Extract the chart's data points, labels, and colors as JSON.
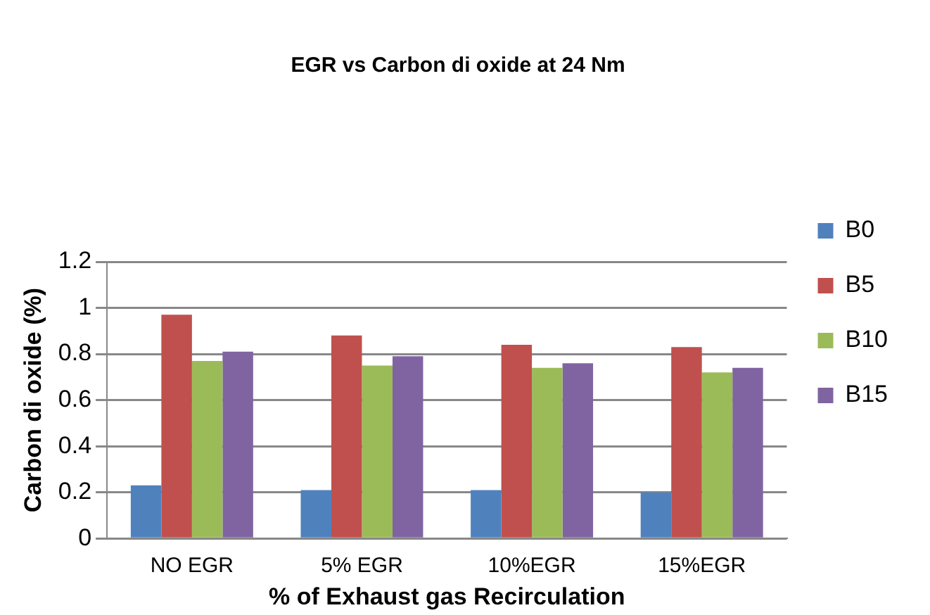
{
  "chart_data": {
    "type": "bar",
    "title": "EGR vs Carbon di oxide at 24 Nm",
    "xlabel": "% of Exhaust gas Recirculation",
    "ylabel": "Carbon di oxide (%)",
    "categories": [
      "NO EGR",
      "5% EGR",
      "10%EGR",
      "15%EGR"
    ],
    "series": [
      {
        "name": "B0",
        "color": "#4f81bd",
        "values": [
          0.23,
          0.21,
          0.21,
          0.2
        ]
      },
      {
        "name": "B5",
        "color": "#c0504d",
        "values": [
          0.97,
          0.88,
          0.84,
          0.83
        ]
      },
      {
        "name": "B10",
        "color": "#9bbb59",
        "values": [
          0.77,
          0.75,
          0.74,
          0.72
        ]
      },
      {
        "name": "B15",
        "color": "#8064a2",
        "values": [
          0.81,
          0.79,
          0.76,
          0.74
        ]
      }
    ],
    "ylim": [
      0,
      1.2
    ],
    "yticks": [
      0,
      0.2,
      0.4,
      0.6,
      0.8,
      1,
      1.2
    ],
    "grid": "y",
    "legend": "right"
  }
}
